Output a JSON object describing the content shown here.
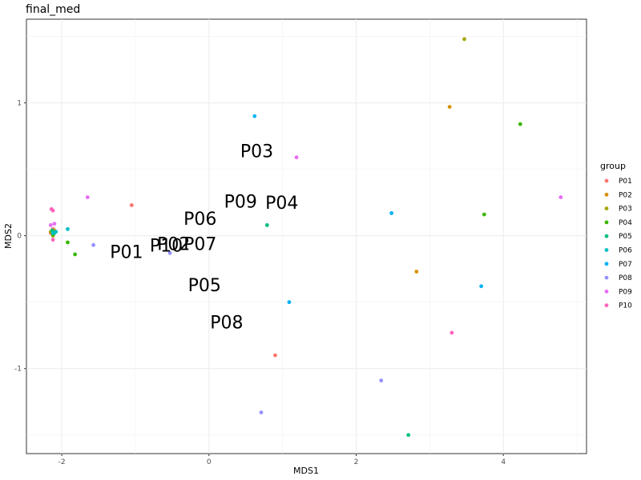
{
  "chart_data": {
    "type": "scatter",
    "title": "final_med",
    "xlabel": "MDS1",
    "ylabel": "MDS2",
    "xlim": [
      -2.48,
      5.13
    ],
    "ylim": [
      -1.64,
      1.63
    ],
    "x_ticks": [
      -2,
      0,
      2,
      4
    ],
    "y_ticks": [
      -1,
      0,
      1
    ],
    "x_tick_labels": [
      "-2",
      "0",
      "2",
      "4"
    ],
    "y_tick_labels": [
      "-1",
      "0",
      "1"
    ],
    "grid": true,
    "legend": {
      "title": "group",
      "position": "right"
    },
    "series": [
      {
        "name": "P01",
        "color": "#F8766D",
        "x": [
          -1.05,
          0.9,
          -2.12,
          -2.15
        ],
        "y": [
          0.23,
          -0.9,
          0.05,
          0.02
        ]
      },
      {
        "name": "P02",
        "color": "#D89000",
        "x": [
          3.27,
          2.82,
          -2.1
        ],
        "y": [
          0.97,
          -0.27,
          0.04
        ]
      },
      {
        "name": "P03",
        "color": "#A3A500",
        "x": [
          3.47,
          -2.15,
          -2.12
        ],
        "y": [
          1.48,
          0.03,
          0.0
        ]
      },
      {
        "name": "P04",
        "color": "#39B600",
        "x": [
          4.23,
          3.74,
          -1.92,
          -1.82,
          -2.12
        ],
        "y": [
          0.84,
          0.16,
          -0.05,
          -0.14,
          0.01
        ]
      },
      {
        "name": "P05",
        "color": "#00BF7D",
        "x": [
          0.79,
          2.71,
          -2.13,
          -2.1
        ],
        "y": [
          0.08,
          -1.5,
          0.04,
          0.02
        ]
      },
      {
        "name": "P06",
        "color": "#00BFC4",
        "x": [
          -1.92,
          -2.12,
          -2.08
        ],
        "y": [
          0.05,
          0.02,
          0.03
        ]
      },
      {
        "name": "P07",
        "color": "#00B0F6",
        "x": [
          0.62,
          2.48,
          1.09,
          3.7
        ],
        "y": [
          0.9,
          0.17,
          -0.5,
          -0.38
        ]
      },
      {
        "name": "P08",
        "color": "#9590FF",
        "x": [
          -1.57,
          -0.53,
          2.34,
          0.71
        ],
        "y": [
          -0.07,
          -0.13,
          -1.09,
          -1.33
        ]
      },
      {
        "name": "P09",
        "color": "#E76BF3",
        "x": [
          -1.65,
          1.19,
          4.78,
          -2.15,
          -2.1
        ],
        "y": [
          0.29,
          0.59,
          0.29,
          0.08,
          0.09
        ]
      },
      {
        "name": "P10",
        "color": "#FF62BC",
        "x": [
          3.3,
          -2.14,
          -2.12,
          -2.12
        ],
        "y": [
          -0.73,
          0.2,
          0.19,
          -0.03
        ]
      }
    ],
    "annotations": [
      {
        "text": "P01",
        "x": -1.12,
        "y": -0.12
      },
      {
        "text": "P10",
        "x": -0.58,
        "y": -0.07
      },
      {
        "text": "P02",
        "x": -0.48,
        "y": -0.06
      },
      {
        "text": "P07",
        "x": -0.12,
        "y": -0.06
      },
      {
        "text": "P06",
        "x": -0.12,
        "y": 0.13
      },
      {
        "text": "P09",
        "x": 0.43,
        "y": 0.26
      },
      {
        "text": "P04",
        "x": 0.99,
        "y": 0.25
      },
      {
        "text": "P03",
        "x": 0.65,
        "y": 0.64
      },
      {
        "text": "P05",
        "x": -0.06,
        "y": -0.37
      },
      {
        "text": "P08",
        "x": 0.24,
        "y": -0.65
      }
    ]
  }
}
